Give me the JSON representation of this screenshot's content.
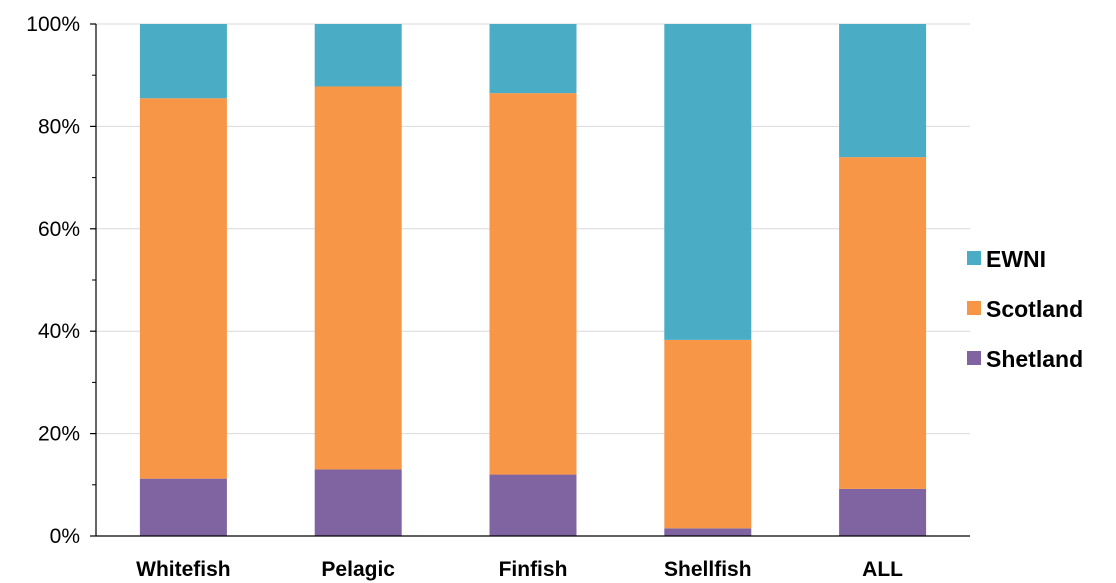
{
  "chart_data": {
    "type": "bar",
    "stacked": true,
    "percent": true,
    "categories": [
      "Whitefish",
      "Pelagic",
      "Finfish",
      "Shellfish",
      "ALL"
    ],
    "series": [
      {
        "name": "Shetland",
        "color": "#8064a2",
        "values": [
          11.2,
          13.0,
          12.0,
          1.5,
          9.2
        ]
      },
      {
        "name": "Scotland",
        "color": "#f79646",
        "values": [
          74.3,
          74.8,
          74.5,
          36.8,
          64.8
        ]
      },
      {
        "name": "EWNI",
        "color": "#4bacc6",
        "values": [
          14.5,
          12.2,
          13.5,
          61.7,
          26.0
        ]
      }
    ],
    "ylim": [
      0,
      100
    ],
    "yticks": [
      "0%",
      "20%",
      "40%",
      "60%",
      "80%",
      "100%"
    ],
    "legend_order": [
      "EWNI",
      "Scotland",
      "Shetland"
    ],
    "legend_position": "right",
    "grid": true
  }
}
